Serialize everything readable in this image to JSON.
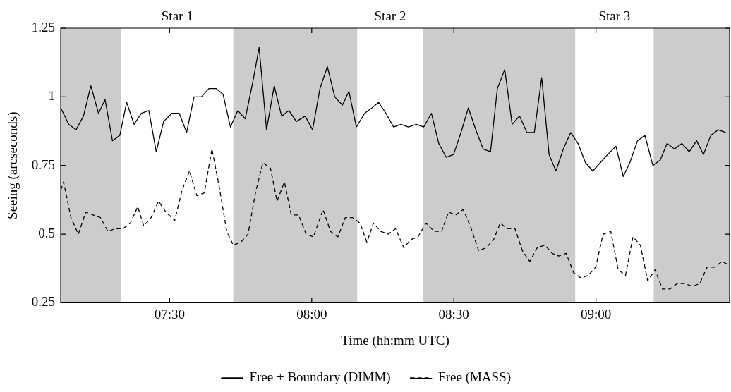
{
  "chart_data": {
    "type": "line",
    "xlabel": "Time (hh:mm UTC)",
    "ylabel": "Seeing (arcseconds)",
    "xlim": [
      7.117,
      9.47
    ],
    "xticks": [
      {
        "value": 7.5,
        "label": "07:30"
      },
      {
        "value": 8,
        "label": "08:00"
      },
      {
        "value": 8.5,
        "label": "08:30"
      },
      {
        "value": 9,
        "label": "09:00"
      }
    ],
    "ylim": [
      0.25,
      1.25
    ],
    "yticks": [
      0.25,
      0.5,
      0.75,
      1,
      1.25
    ],
    "grid": false,
    "legend": "bottom",
    "marker": "none",
    "bands": [
      {
        "axis": "x",
        "from": 7.117,
        "to": 7.33,
        "color": "#cccccc"
      },
      {
        "axis": "x",
        "from": 7.724,
        "to": 8.16,
        "color": "#cccccc"
      },
      {
        "axis": "x",
        "from": 8.392,
        "to": 8.927,
        "color": "#cccccc"
      },
      {
        "axis": "x",
        "from": 9.203,
        "to": 9.47,
        "color": "#cccccc"
      }
    ],
    "annotations": [
      "Star 1",
      "Star 2",
      "Star 3"
    ],
    "series": [
      {
        "name": "Free + Boundary (DIMM)",
        "color": "#000000",
        "line_style": "solid",
        "x": [
          7.117,
          7.145,
          7.171,
          7.197,
          7.223,
          7.25,
          7.273,
          7.299,
          7.325,
          7.349,
          7.375,
          7.401,
          7.427,
          7.453,
          7.479,
          7.508,
          7.534,
          7.56,
          7.586,
          7.612,
          7.638,
          7.664,
          7.688,
          7.714,
          7.74,
          7.766,
          7.792,
          7.815,
          7.841,
          7.868,
          7.894,
          7.92,
          7.946,
          7.977,
          8.003,
          8.029,
          8.055,
          8.081,
          8.108,
          8.131,
          8.157,
          8.186,
          8.212,
          8.235,
          8.261,
          8.288,
          8.314,
          8.34,
          8.368,
          8.394,
          8.421,
          8.447,
          8.473,
          8.499,
          8.525,
          8.551,
          8.577,
          8.603,
          8.629,
          8.653,
          8.679,
          8.705,
          8.731,
          8.757,
          8.783,
          8.809,
          8.835,
          8.859,
          8.885,
          8.911,
          8.937,
          8.963,
          8.989,
          9.015,
          9.041,
          9.07,
          9.096,
          9.119,
          9.146,
          9.172,
          9.2,
          9.226,
          9.25,
          9.276,
          9.302,
          9.328,
          9.354,
          9.378,
          9.404,
          9.43,
          9.456
        ],
        "values": [
          0.96,
          0.9,
          0.88,
          0.93,
          1.04,
          0.94,
          0.99,
          0.84,
          0.86,
          0.98,
          0.9,
          0.94,
          0.95,
          0.8,
          0.91,
          0.94,
          0.94,
          0.87,
          1.0,
          1.0,
          1.03,
          1.03,
          1.01,
          0.89,
          0.95,
          0.92,
          1.05,
          1.18,
          0.88,
          1.04,
          0.93,
          0.95,
          0.91,
          0.93,
          0.88,
          1.03,
          1.11,
          1.0,
          0.97,
          1.02,
          0.89,
          0.94,
          0.96,
          0.98,
          0.94,
          0.89,
          0.9,
          0.89,
          0.9,
          0.89,
          0.94,
          0.83,
          0.78,
          0.79,
          0.87,
          0.96,
          0.88,
          0.81,
          0.8,
          1.03,
          1.1,
          0.9,
          0.93,
          0.87,
          0.87,
          1.07,
          0.79,
          0.73,
          0.81,
          0.87,
          0.83,
          0.76,
          0.73,
          0.76,
          0.79,
          0.82,
          0.71,
          0.76,
          0.84,
          0.86,
          0.75,
          0.77,
          0.83,
          0.81,
          0.83,
          0.8,
          0.84,
          0.79,
          0.86,
          0.88,
          0.87
        ]
      },
      {
        "name": "Free (MASS)",
        "color": "#000000",
        "line_style": "dashed",
        "x": [
          7.117,
          7.127,
          7.153,
          7.179,
          7.205,
          7.231,
          7.257,
          7.283,
          7.309,
          7.336,
          7.362,
          7.388,
          7.409,
          7.435,
          7.461,
          7.487,
          7.518,
          7.544,
          7.57,
          7.596,
          7.622,
          7.649,
          7.675,
          7.701,
          7.724,
          7.75,
          7.776,
          7.802,
          7.828,
          7.855,
          7.878,
          7.904,
          7.928,
          7.954,
          7.98,
          8.006,
          8.04,
          8.066,
          8.092,
          8.118,
          8.144,
          8.17,
          8.194,
          8.217,
          8.243,
          8.269,
          8.295,
          8.324,
          8.348,
          8.374,
          8.402,
          8.431,
          8.457,
          8.481,
          8.507,
          8.533,
          8.561,
          8.587,
          8.614,
          8.64,
          8.663,
          8.689,
          8.715,
          8.741,
          8.767,
          8.793,
          8.82,
          8.846,
          8.869,
          8.895,
          8.921,
          8.947,
          8.973,
          8.999,
          9.025,
          9.052,
          9.078,
          9.104,
          9.13,
          9.156,
          9.182,
          9.208,
          9.234,
          9.26,
          9.286,
          9.312,
          9.339,
          9.365,
          9.391,
          9.417,
          9.443,
          9.464
        ],
        "values": [
          0.66,
          0.69,
          0.56,
          0.5,
          0.58,
          0.57,
          0.56,
          0.51,
          0.52,
          0.52,
          0.54,
          0.6,
          0.53,
          0.56,
          0.62,
          0.58,
          0.55,
          0.66,
          0.73,
          0.64,
          0.65,
          0.81,
          0.67,
          0.51,
          0.46,
          0.47,
          0.5,
          0.65,
          0.76,
          0.74,
          0.62,
          0.69,
          0.57,
          0.57,
          0.5,
          0.49,
          0.59,
          0.51,
          0.49,
          0.56,
          0.56,
          0.54,
          0.47,
          0.54,
          0.51,
          0.5,
          0.52,
          0.45,
          0.48,
          0.49,
          0.54,
          0.51,
          0.51,
          0.58,
          0.57,
          0.59,
          0.52,
          0.44,
          0.45,
          0.48,
          0.54,
          0.52,
          0.52,
          0.44,
          0.4,
          0.45,
          0.46,
          0.43,
          0.42,
          0.43,
          0.36,
          0.34,
          0.35,
          0.38,
          0.5,
          0.51,
          0.37,
          0.35,
          0.49,
          0.46,
          0.33,
          0.37,
          0.3,
          0.3,
          0.32,
          0.32,
          0.31,
          0.32,
          0.38,
          0.38,
          0.4,
          0.39
        ]
      }
    ]
  }
}
